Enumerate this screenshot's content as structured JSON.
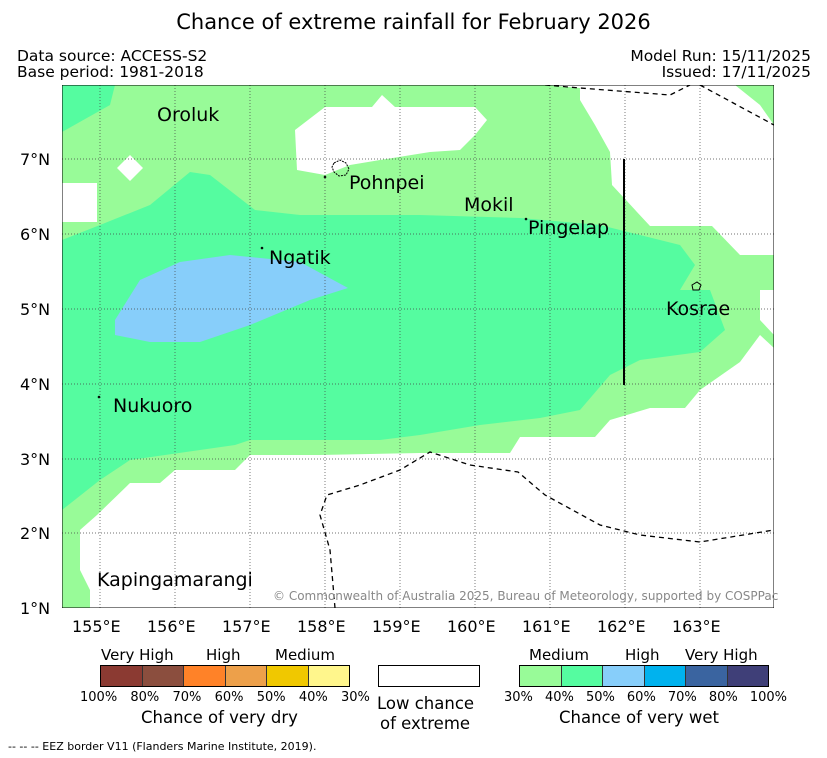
{
  "title": "Chance of extreme rainfall for February 2026",
  "header": {
    "data_source": "Data source: ACCESS-S2",
    "base_period": "Base period: 1981-2018",
    "model_run": "Model Run: 15/11/2025",
    "issued": "Issued: 17/11/2025"
  },
  "places": [
    "Oroluk",
    "Pohnpei",
    "Mokil",
    "Pingelap",
    "Ngatik",
    "Kosrae",
    "Nukuoro",
    "Kapingamarangi"
  ],
  "lon_ticks": [
    "155°E",
    "156°E",
    "157°E",
    "158°E",
    "159°E",
    "160°E",
    "161°E",
    "162°E",
    "163°E"
  ],
  "lat_ticks": [
    "7°N",
    "6°N",
    "5°N",
    "4°N",
    "3°N",
    "2°N",
    "1°N"
  ],
  "copyright": "© Commonwealth of Australia 2025, Bureau of Meteorology, supported by COSPPac",
  "legend": {
    "dry": {
      "levels": [
        "Very High",
        "High",
        "Medium"
      ],
      "colors": [
        "#8b3a32",
        "#8b4e3e",
        "#ff8228",
        "#eda04a",
        "#f0c800",
        "#fff68c"
      ],
      "ticks": [
        "100%",
        "80%",
        "70%",
        "60%",
        "50%",
        "40%",
        "30%"
      ],
      "caption": "Chance of very dry"
    },
    "low": {
      "caption_1": "Low chance",
      "caption_2": "of extreme",
      "color": "#ffffff"
    },
    "wet": {
      "levels": [
        "Medium",
        "High",
        "Very High"
      ],
      "colors": [
        "#98fb98",
        "#55fca0",
        "#87cefa",
        "#00b2ee",
        "#3a64a0",
        "#3f3f78"
      ],
      "ticks": [
        "30%",
        "40%",
        "50%",
        "60%",
        "70%",
        "80%",
        "100%"
      ],
      "caption": "Chance of very wet"
    }
  },
  "footnote": "-- -- -- EEZ border V11 (Flanders Marine Institute, 2019)."
}
